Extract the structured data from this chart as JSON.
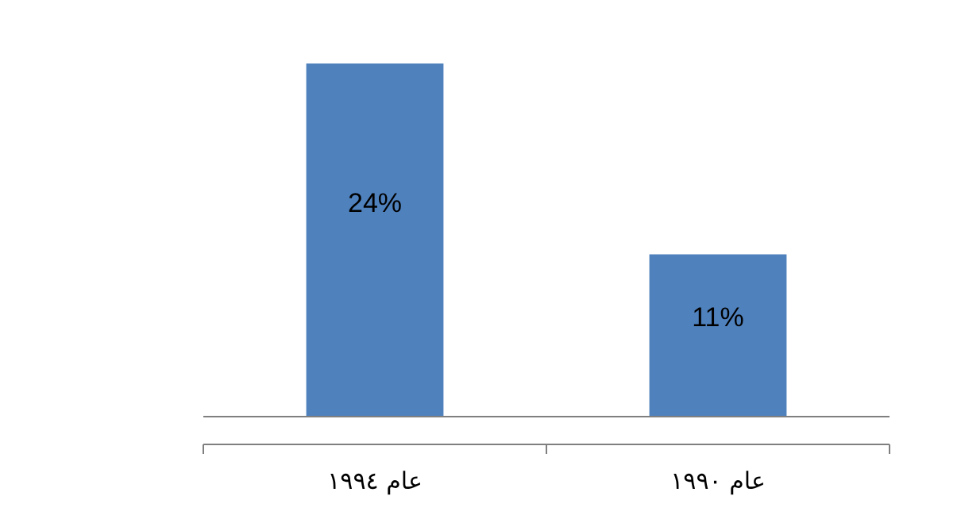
{
  "chart_data": {
    "type": "bar",
    "categories": [
      "عام ١٩٩٤",
      "عام ١٩٩٠"
    ],
    "values": [
      24,
      11
    ],
    "color": "#4f81bd",
    "value_labels": [
      "24%",
      "11%"
    ]
  }
}
